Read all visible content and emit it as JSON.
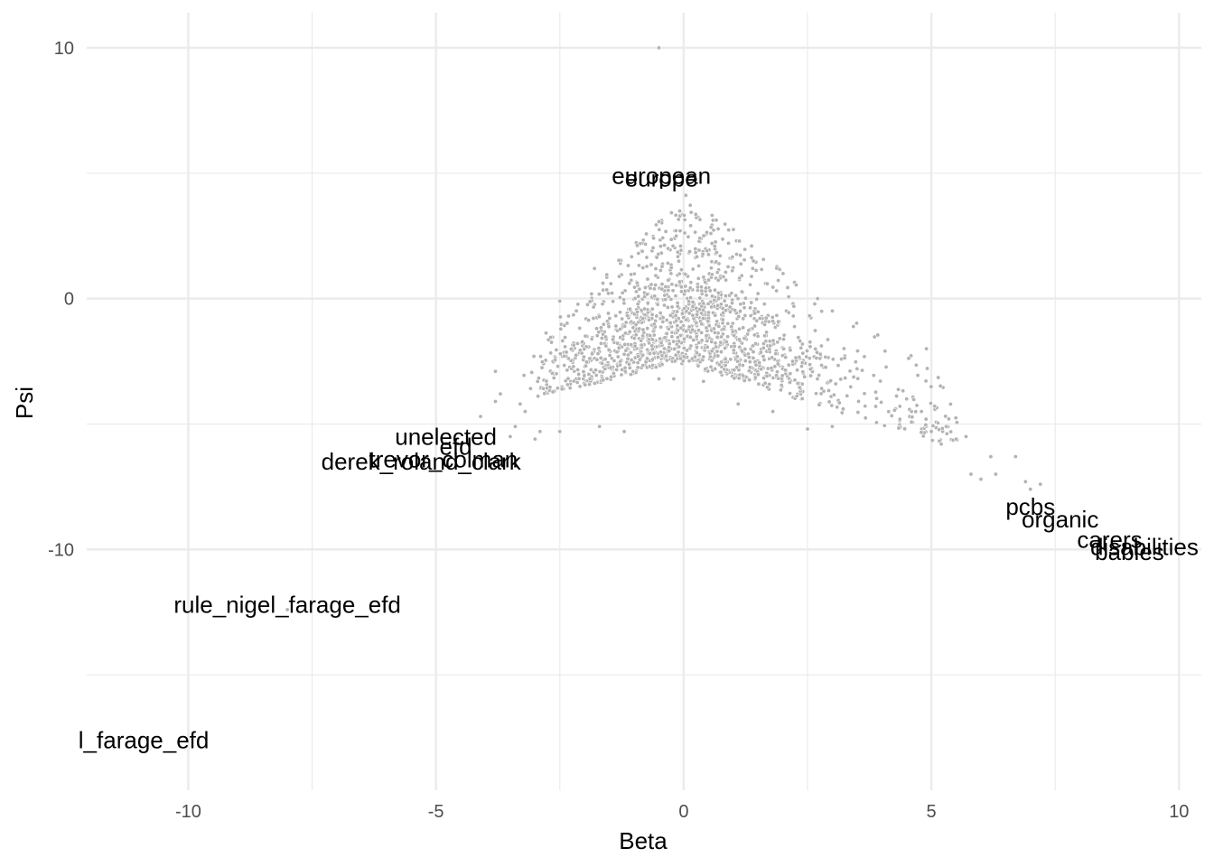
{
  "chart_data": {
    "type": "scatter",
    "xlabel": "Beta",
    "ylabel": "Psi",
    "xlim": [
      -12.05,
      10.45
    ],
    "ylim": [
      -19.6,
      11.4
    ],
    "x_ticks": [
      -10,
      -5,
      0,
      5,
      10
    ],
    "x_tick_labels": [
      "-10",
      "-5",
      "0",
      "5",
      "10"
    ],
    "y_ticks": [
      -10,
      0,
      10
    ],
    "y_tick_labels": [
      "-10",
      "0",
      "10"
    ],
    "grid": true,
    "point_color": "#b3b3b3",
    "labeled_words": [
      {
        "label": "european",
        "x": -0.45,
        "y": 4.9
      },
      {
        "label": "europe",
        "x": -0.45,
        "y": 4.8
      },
      {
        "label": "unelected",
        "x": -4.8,
        "y": -5.5
      },
      {
        "label": "efd",
        "x": -4.6,
        "y": -5.9
      },
      {
        "label": "trevor_colman",
        "x": -4.85,
        "y": -6.4
      },
      {
        "label": "derek_roland_clark",
        "x": -5.3,
        "y": -6.5
      },
      {
        "label": "rule_nigel_farage_efd",
        "x": -8.0,
        "y": -12.2
      },
      {
        "label": "l_farage_efd",
        "x": -10.9,
        "y": -17.6
      },
      {
        "label": "pcbs",
        "x": 7.0,
        "y": -8.3
      },
      {
        "label": "organic",
        "x": 7.6,
        "y": -8.8
      },
      {
        "label": "carers",
        "x": 8.6,
        "y": -9.6
      },
      {
        "label": "disabilities",
        "x": 9.3,
        "y": -9.9
      },
      {
        "label": "babies",
        "x": 9.0,
        "y": -10.1
      }
    ],
    "points": [
      [
        -0.5,
        10.0
      ],
      [
        -2.5,
        -0.1
      ],
      [
        -3.8,
        -2.9
      ],
      [
        -3.7,
        -3.8
      ],
      [
        -3.8,
        -4.1
      ],
      [
        -4.1,
        -4.7
      ],
      [
        -3.3,
        -4.2
      ],
      [
        -3.2,
        -4.5
      ],
      [
        -3.0,
        -5.6
      ],
      [
        -3.4,
        -5.1
      ],
      [
        -2.5,
        -5.3
      ],
      [
        -2.9,
        -5.3
      ],
      [
        -3.5,
        -5.5
      ],
      [
        -8.0,
        -12.4
      ],
      [
        6.9,
        -7.3
      ],
      [
        6.7,
        -6.3
      ],
      [
        6.2,
        -6.3
      ],
      [
        6.3,
        -7.0
      ],
      [
        5.8,
        -7.0
      ],
      [
        6.0,
        -7.2
      ],
      [
        5.5,
        -5.6
      ],
      [
        5.2,
        -5.8
      ],
      [
        4.9,
        -2.0
      ],
      [
        4.5,
        -4.0
      ],
      [
        4.6,
        -4.5
      ],
      [
        4.8,
        -4.5
      ],
      [
        3.5,
        -2.8
      ],
      [
        3.0,
        -5.1
      ],
      [
        2.7,
        -3.2
      ],
      [
        2.2,
        -2.5
      ],
      [
        1.8,
        -0.9
      ],
      [
        1.5,
        -1.5
      ],
      [
        1.2,
        -0.8
      ],
      [
        1.5,
        0.2
      ],
      [
        -1.8,
        1.2
      ],
      [
        -0.5,
        -3.2
      ],
      [
        -0.2,
        -3.2
      ],
      [
        0.4,
        -3.3
      ],
      [
        2.5,
        -5.2
      ],
      [
        1.8,
        -4.5
      ],
      [
        1.1,
        -4.2
      ],
      [
        -1.7,
        -5.1
      ],
      [
        -1.2,
        -5.3
      ],
      [
        5.0,
        -5.3
      ],
      [
        5.3,
        -5.1
      ],
      [
        5.7,
        -5.5
      ],
      [
        7.2,
        -7.4
      ],
      [
        7.0,
        -7.6
      ]
    ]
  }
}
